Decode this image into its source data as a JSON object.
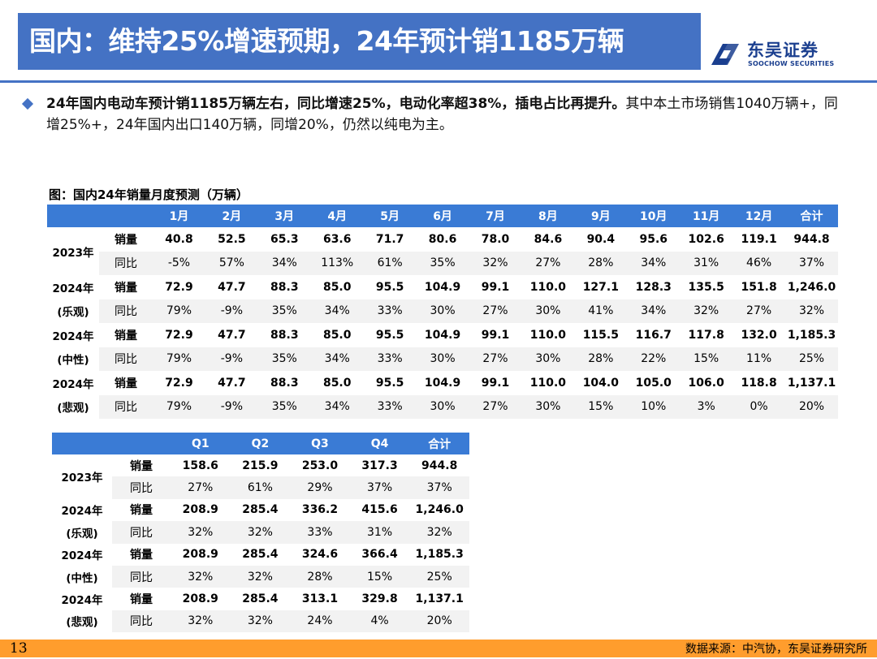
{
  "header": {
    "title": "国内：维持25%增速预期，24年预计销1185万辆",
    "logo_cn": "东吴证券",
    "logo_en": "SOOCHOW SECURITIES"
  },
  "summary": {
    "bold": "24年国内电动车预计销1185万辆左右，同比增速25%，电动化率超38%，插电占比再提升。",
    "normal": "其中本土市场销售1040万辆+，同增25%+，24年国内出口140万辆，同增20%，仍然以纯电为主。"
  },
  "figure_caption": "图：国内24年销量月度预测（万辆）",
  "monthly_table": {
    "headers": [
      "1月",
      "2月",
      "3月",
      "4月",
      "5月",
      "6月",
      "7月",
      "8月",
      "9月",
      "10月",
      "11月",
      "12月",
      "合计"
    ],
    "groups": [
      {
        "label_top": "2023年",
        "label_bottom": "",
        "rows": [
          {
            "label": "销量",
            "values": [
              "40.8",
              "52.5",
              "65.3",
              "63.6",
              "71.7",
              "80.6",
              "78.0",
              "84.6",
              "90.4",
              "95.6",
              "102.6",
              "119.1",
              "944.8"
            ]
          },
          {
            "label": "同比",
            "values": [
              "-5%",
              "57%",
              "34%",
              "113%",
              "61%",
              "35%",
              "32%",
              "27%",
              "28%",
              "34%",
              "31%",
              "46%",
              "37%"
            ]
          }
        ]
      },
      {
        "label_top": "2024年",
        "label_bottom": "(乐观)",
        "rows": [
          {
            "label": "销量",
            "values": [
              "72.9",
              "47.7",
              "88.3",
              "85.0",
              "95.5",
              "104.9",
              "99.1",
              "110.0",
              "127.1",
              "128.3",
              "135.5",
              "151.8",
              "1,246.0"
            ]
          },
          {
            "label": "同比",
            "values": [
              "79%",
              "-9%",
              "35%",
              "34%",
              "33%",
              "30%",
              "27%",
              "30%",
              "41%",
              "34%",
              "32%",
              "27%",
              "32%"
            ]
          }
        ]
      },
      {
        "label_top": "2024年",
        "label_bottom": "(中性)",
        "rows": [
          {
            "label": "销量",
            "values": [
              "72.9",
              "47.7",
              "88.3",
              "85.0",
              "95.5",
              "104.9",
              "99.1",
              "110.0",
              "115.5",
              "116.7",
              "117.8",
              "132.0",
              "1,185.3"
            ]
          },
          {
            "label": "同比",
            "values": [
              "79%",
              "-9%",
              "35%",
              "34%",
              "33%",
              "30%",
              "27%",
              "30%",
              "28%",
              "22%",
              "15%",
              "11%",
              "25%"
            ]
          }
        ]
      },
      {
        "label_top": "2024年",
        "label_bottom": "(悲观)",
        "rows": [
          {
            "label": "销量",
            "values": [
              "72.9",
              "47.7",
              "88.3",
              "85.0",
              "95.5",
              "104.9",
              "99.1",
              "110.0",
              "104.0",
              "105.0",
              "106.0",
              "118.8",
              "1,137.1"
            ]
          },
          {
            "label": "同比",
            "values": [
              "79%",
              "-9%",
              "35%",
              "34%",
              "33%",
              "30%",
              "27%",
              "30%",
              "15%",
              "10%",
              "3%",
              "0%",
              "20%"
            ]
          }
        ]
      }
    ]
  },
  "quarterly_table": {
    "headers": [
      "Q1",
      "Q2",
      "Q3",
      "Q4",
      "合计"
    ],
    "groups": [
      {
        "label_top": "2023年",
        "label_bottom": "",
        "rows": [
          {
            "label": "销量",
            "values": [
              "158.6",
              "215.9",
              "253.0",
              "317.3",
              "944.8"
            ]
          },
          {
            "label": "同比",
            "values": [
              "27%",
              "61%",
              "29%",
              "37%",
              "37%"
            ]
          }
        ]
      },
      {
        "label_top": "2024年",
        "label_bottom": "(乐观)",
        "rows": [
          {
            "label": "销量",
            "values": [
              "208.9",
              "285.4",
              "336.2",
              "415.6",
              "1,246.0"
            ]
          },
          {
            "label": "同比",
            "values": [
              "32%",
              "32%",
              "33%",
              "31%",
              "32%"
            ]
          }
        ]
      },
      {
        "label_top": "2024年",
        "label_bottom": "(中性)",
        "rows": [
          {
            "label": "销量",
            "values": [
              "208.9",
              "285.4",
              "324.6",
              "366.4",
              "1,185.3"
            ]
          },
          {
            "label": "同比",
            "values": [
              "32%",
              "32%",
              "28%",
              "15%",
              "25%"
            ]
          }
        ]
      },
      {
        "label_top": "2024年",
        "label_bottom": "(悲观)",
        "rows": [
          {
            "label": "销量",
            "values": [
              "208.9",
              "285.4",
              "313.1",
              "329.8",
              "1,137.1"
            ]
          },
          {
            "label": "同比",
            "values": [
              "32%",
              "32%",
              "24%",
              "4%",
              "20%"
            ]
          }
        ]
      }
    ]
  },
  "footer": {
    "page_number": "13",
    "source": "数据来源：中汽协，东吴证券研究所"
  },
  "colors": {
    "title_bar": "#4472c4",
    "table_header": "#3a7bd5",
    "footer_bar": "#ff9d2d",
    "row_shade": "#f2f2f2"
  }
}
